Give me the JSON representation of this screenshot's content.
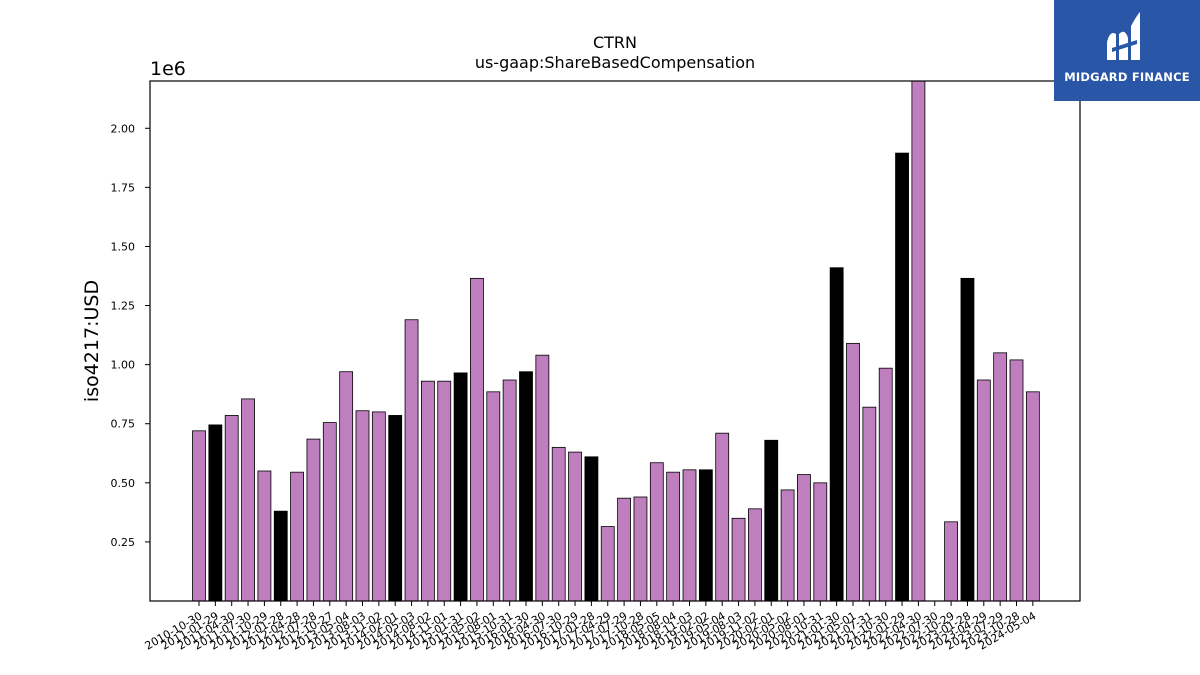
{
  "chart_data": {
    "type": "bar",
    "title": "CTRN",
    "subtitle": "us-gaap:ShareBasedCompensation",
    "ylabel": "iso4217:USD",
    "y_offset_label": "1e6",
    "ylim": [
      0,
      2.2
    ],
    "yticks": [
      "0.25",
      "0.50",
      "0.75",
      "1.00",
      "1.25",
      "1.50",
      "1.75",
      "2.00"
    ],
    "series": [
      {
        "categories": [
          "2010-10-30",
          "2011-01-29",
          "2011-04-30",
          "2011-07-30",
          "2011-10-29",
          "2012-01-28",
          "2012-04-28",
          "2012-07-28",
          "2012-10-27",
          "2013-05-04",
          "2013-08-03",
          "2013-11-02",
          "2014-02-01",
          "2014-05-03",
          "2014-08-02",
          "2014-11-01",
          "2015-01-31",
          "2015-05-02",
          "2015-08-01",
          "2015-10-31",
          "2016-01-30",
          "2016-04-30",
          "2016-07-30",
          "2016-10-29",
          "2017-01-28",
          "2017-04-29",
          "2017-07-29",
          "2017-10-28",
          "2018-05-05",
          "2018-08-04",
          "2018-11-03",
          "2019-02-02",
          "2019-05-04",
          "2019-08-03",
          "2019-11-02",
          "2020-02-01",
          "2020-05-02",
          "2020-08-01",
          "2020-10-31",
          "2021-01-30",
          "2021-05-01",
          "2021-07-31",
          "2021-10-30",
          "2022-01-29",
          "2022-04-30",
          "2022-07-30",
          "2022-10-29",
          "2023-01-28",
          "2023-04-29",
          "2023-07-29",
          "2023-10-28",
          "2024-05-04"
        ],
        "values": [
          0.72,
          0.745,
          0.785,
          0.855,
          0.55,
          0.38,
          0.545,
          0.685,
          0.755,
          0.97,
          0.805,
          0.8,
          0.785,
          1.19,
          0.93,
          0.93,
          0.965,
          1.365,
          0.885,
          0.935,
          0.97,
          1.04,
          0.65,
          0.63,
          0.61,
          0.315,
          0.435,
          0.44,
          0.585,
          0.545,
          0.555,
          0.555,
          0.71,
          0.35,
          0.39,
          0.68,
          0.47,
          0.535,
          0.5,
          1.41,
          1.09,
          0.82,
          0.985,
          1.895,
          2.2,
          0,
          0.335,
          1.365,
          0.935,
          1.05,
          1.02,
          0.885
        ],
        "annual": [
          false,
          true,
          false,
          false,
          false,
          true,
          false,
          false,
          false,
          false,
          false,
          false,
          true,
          false,
          false,
          false,
          true,
          false,
          false,
          false,
          true,
          false,
          false,
          false,
          true,
          false,
          false,
          false,
          false,
          false,
          false,
          true,
          false,
          false,
          false,
          true,
          false,
          false,
          false,
          true,
          false,
          false,
          false,
          true,
          false,
          false,
          false,
          true,
          false,
          false,
          false,
          false
        ]
      }
    ],
    "colors": {
      "quarter": "#bf7fbf",
      "annual": "#000000",
      "edge": "#000000"
    },
    "grid": false,
    "legend": "none"
  },
  "logo": {
    "text": "MIDGARD FINANCE",
    "bg": "#2a56a7"
  }
}
